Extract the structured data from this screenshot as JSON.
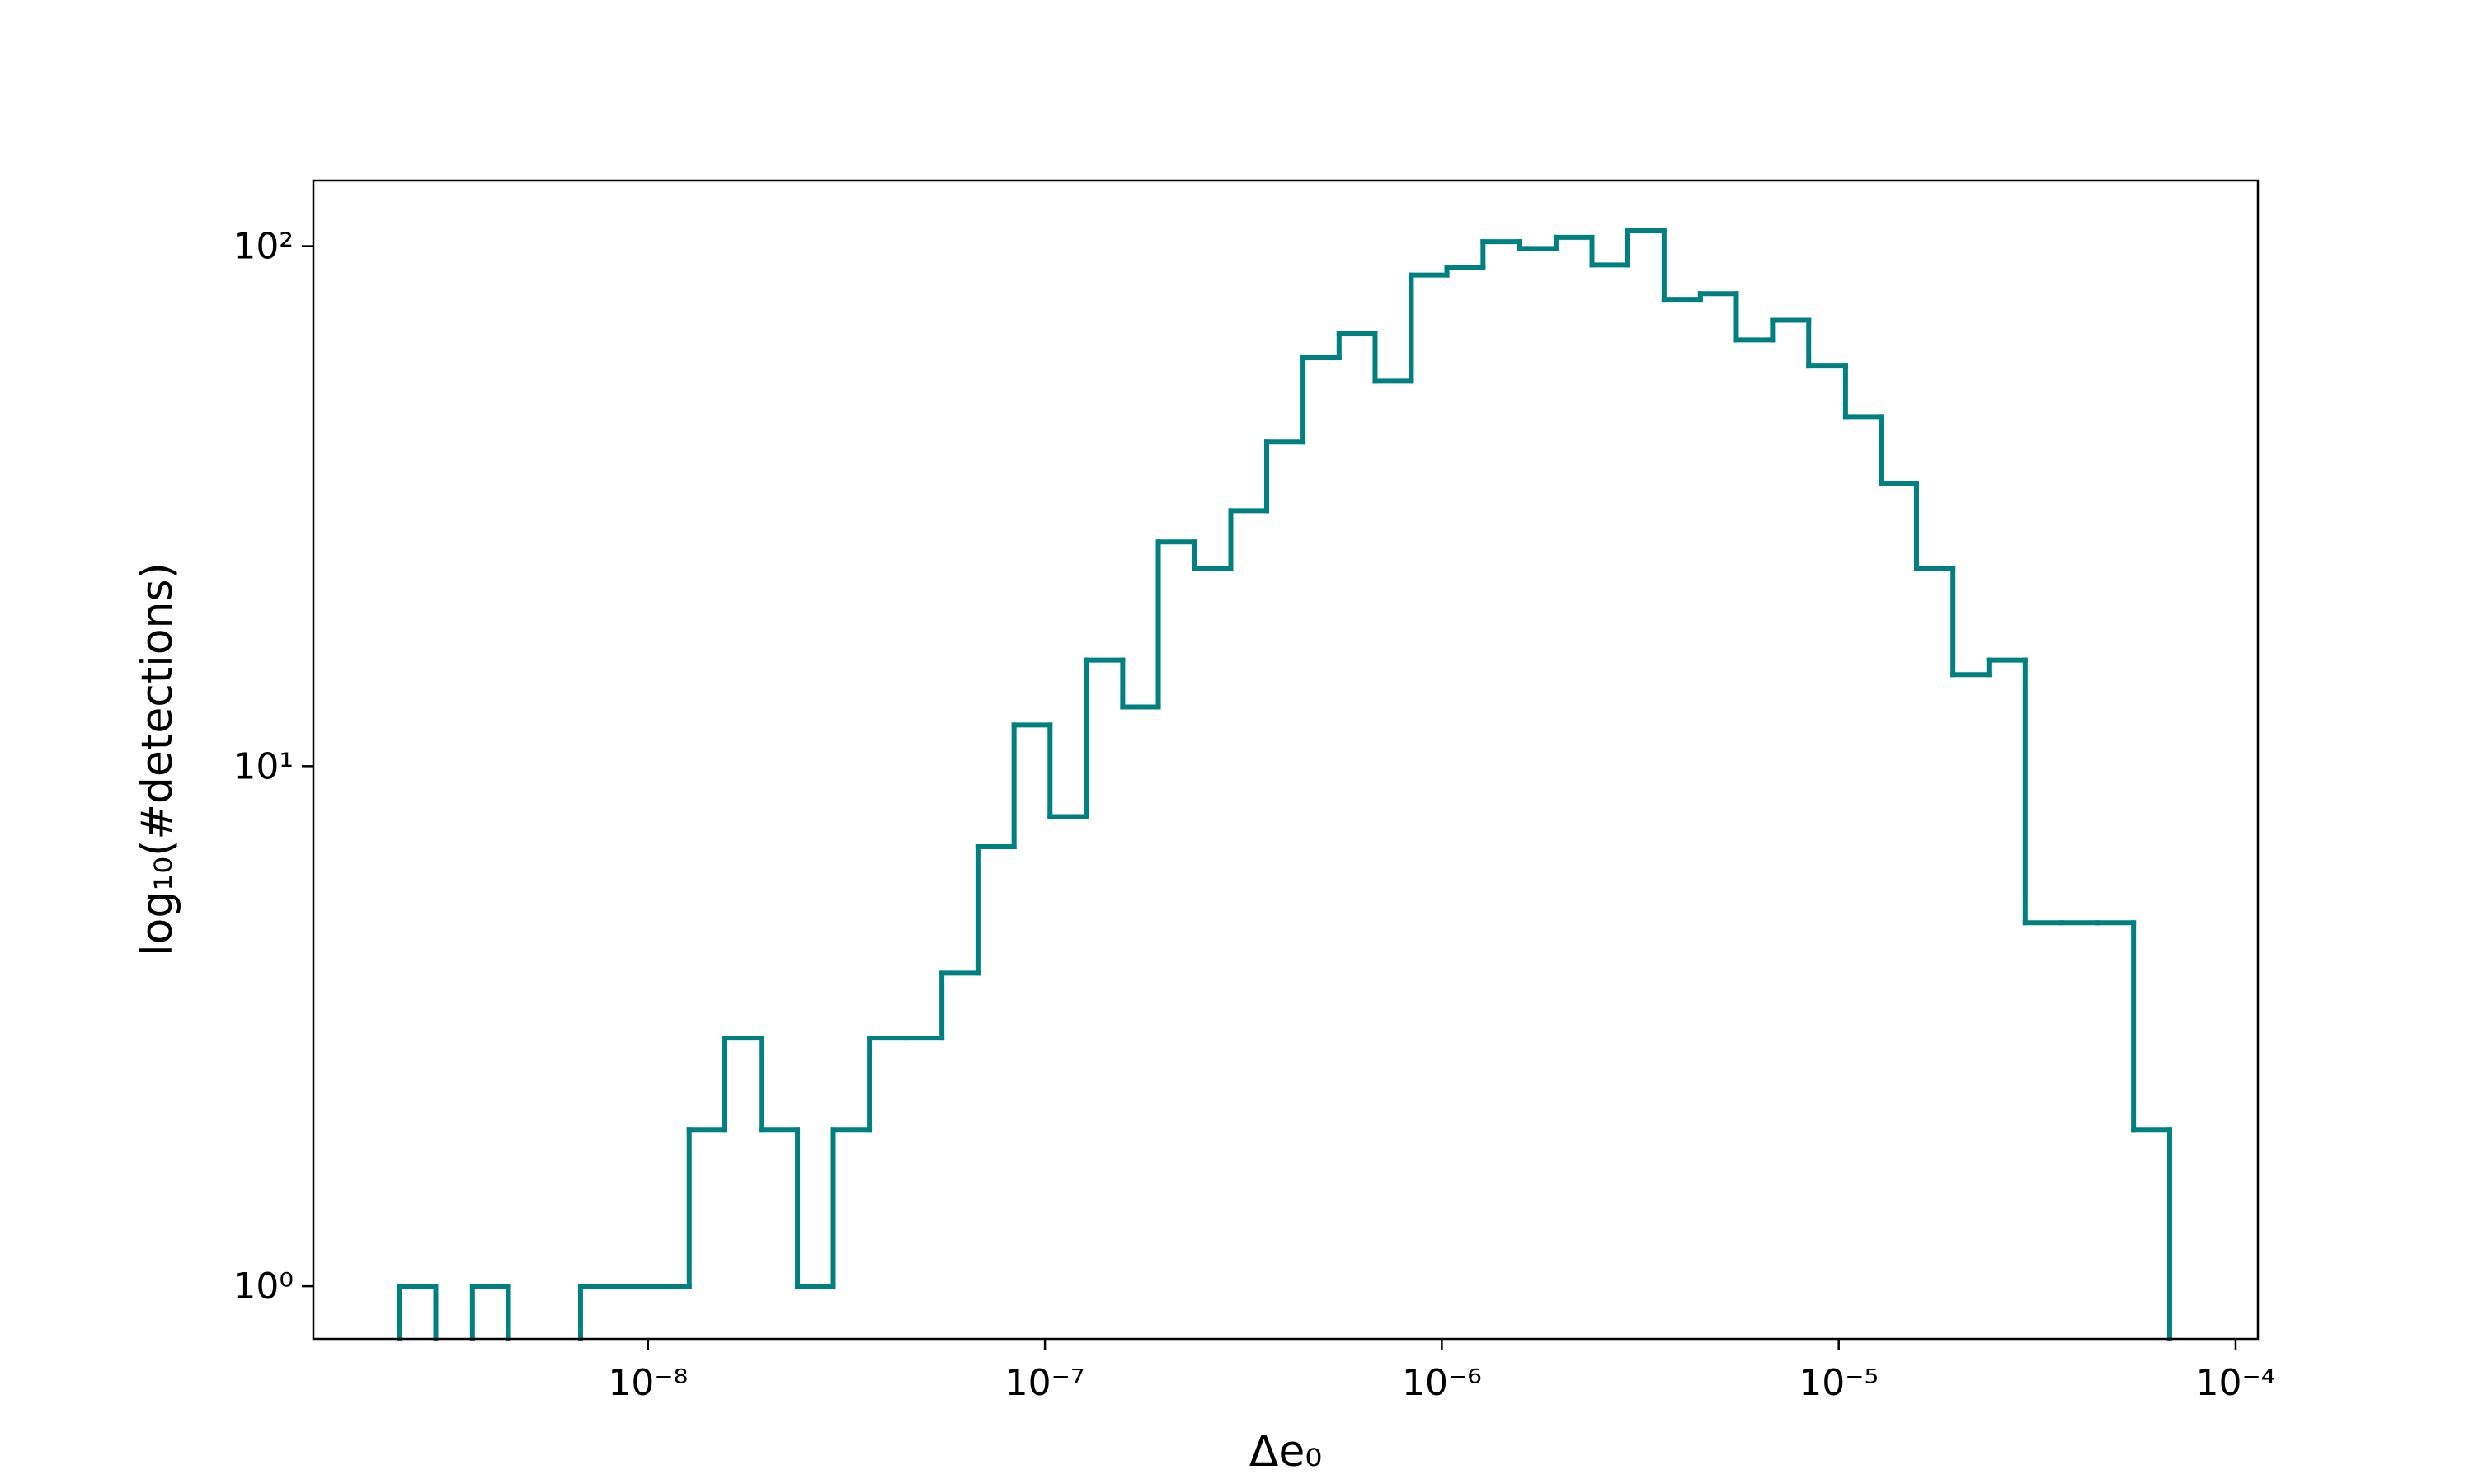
{
  "chart_data": {
    "type": "histogram",
    "xlabel": "Δe₀",
    "ylabel": "log₁₀(#detections)",
    "color": "#008080",
    "xscale": "log",
    "yscale": "log",
    "bins": [
      2.37e-09,
      2.92e-09,
      3.61e-09,
      4.45e-09,
      5.48e-09,
      6.76e-09,
      8.34e-09,
      1.03e-08,
      1.27e-08,
      1.56e-08,
      1.93e-08,
      2.38e-08,
      2.93e-08,
      3.61e-08,
      4.46e-08,
      5.5e-08,
      6.78e-08,
      8.36e-08,
      1.03e-07,
      1.27e-07,
      1.57e-07,
      1.93e-07,
      2.38e-07,
      2.94e-07,
      3.62e-07,
      4.47e-07,
      5.51e-07,
      6.79e-07,
      8.38e-07,
      1.03e-06,
      1.27e-06,
      1.57e-06,
      1.94e-06,
      2.39e-06,
      2.94e-06,
      3.63e-06,
      4.48e-06,
      5.52e-06,
      6.81e-06,
      8.4e-06,
      1.04e-05,
      1.28e-05,
      1.57e-05,
      1.94e-05,
      2.39e-05,
      2.95e-05,
      3.64e-05,
      4.49e-05,
      5.53e-05,
      6.82e-05
    ],
    "values": [
      1,
      0,
      1,
      0,
      0,
      1,
      1,
      1,
      2,
      3,
      2,
      1,
      2,
      3,
      3,
      4,
      7,
      12,
      8,
      16,
      13,
      27,
      24,
      31,
      42,
      61,
      68,
      55,
      88,
      91,
      102,
      99,
      104,
      92,
      107,
      79,
      81,
      66,
      72,
      59,
      47,
      35,
      24,
      15,
      16,
      5,
      5,
      5,
      2
    ],
    "xlim": [
      1.435e-09,
      0.0001138
    ],
    "ylim": [
      0.792,
      133.7
    ],
    "xticks": [
      {
        "value": 1e-08,
        "label": "10⁻⁸"
      },
      {
        "value": 1e-07,
        "label": "10⁻⁷"
      },
      {
        "value": 1e-06,
        "label": "10⁻⁶"
      },
      {
        "value": 1e-05,
        "label": "10⁻⁵"
      },
      {
        "value": 0.0001,
        "label": "10⁻⁴"
      }
    ],
    "yticks": [
      {
        "value": 1,
        "label": "10⁰"
      },
      {
        "value": 10,
        "label": "10¹"
      },
      {
        "value": 100,
        "label": "10²"
      }
    ]
  }
}
